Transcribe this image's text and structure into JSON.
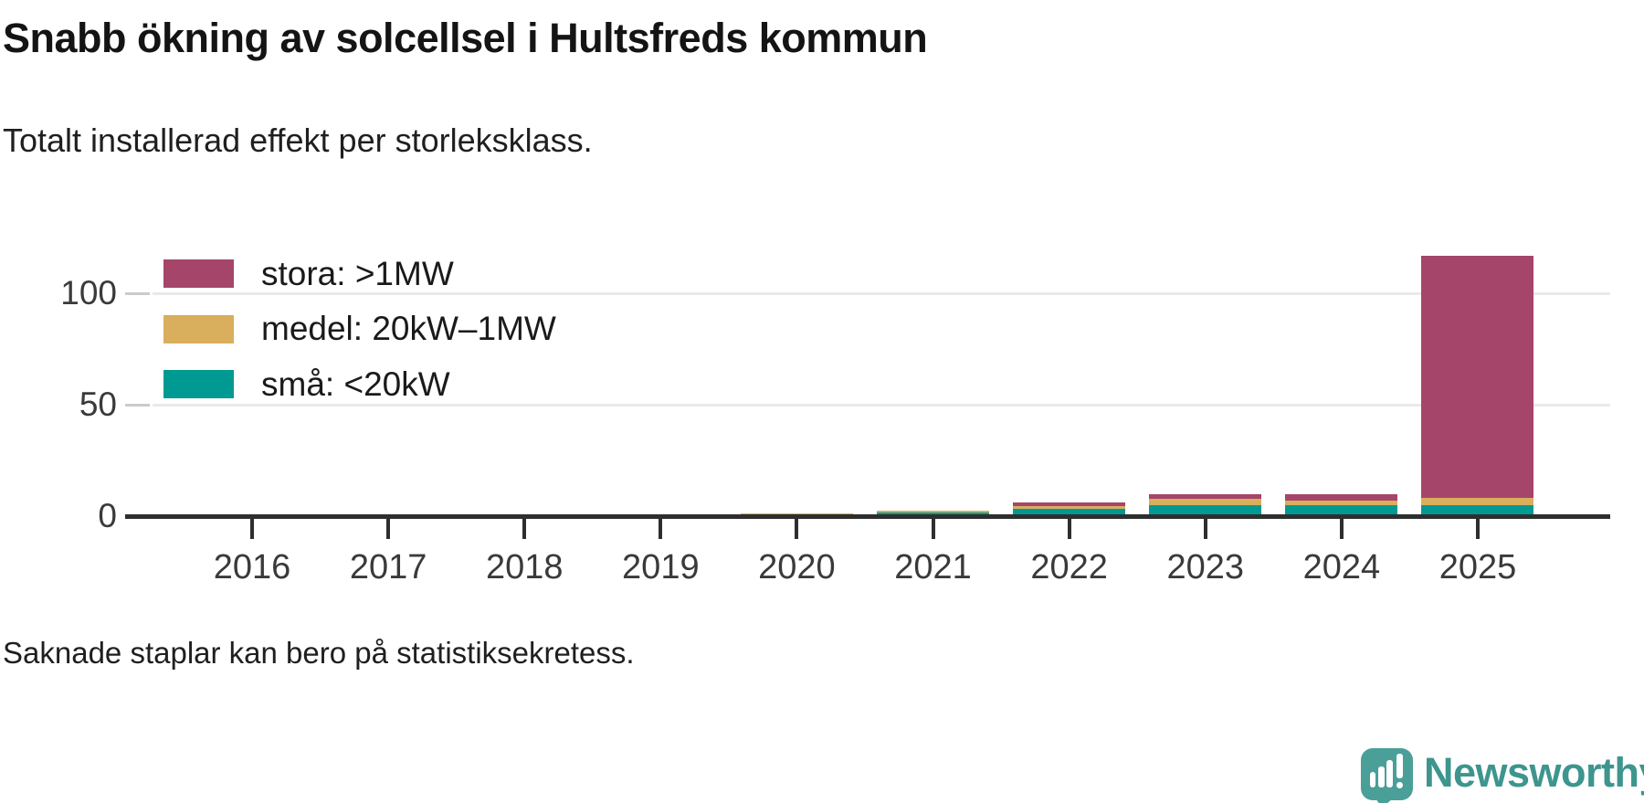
{
  "header": {
    "title": "Snabb ökning av solcellsel i Hultsfreds kommun",
    "subtitle": "Totalt installerad effekt per storleksklass."
  },
  "footer": {
    "note": "Saknade staplar kan bero på statistiksekretess.",
    "brand_name": "Newsworthy"
  },
  "colors": {
    "stora": "#a54569",
    "medel": "#d9ae5c",
    "sma": "#009a93",
    "axis": "#2e2e2e",
    "gridline": "#e9e9e9",
    "text": "#1a1a1a",
    "brand_teal": "#4a9f98",
    "brand_text": "#3d958e"
  },
  "chart_data": {
    "type": "bar",
    "stacked": true,
    "title": "Snabb ökning av solcellsel i Hultsfreds kommun",
    "subtitle": "Totalt installerad effekt per storleksklass.",
    "xlabel": "",
    "ylabel": "",
    "categories": [
      "2016",
      "2017",
      "2018",
      "2019",
      "2020",
      "2021",
      "2022",
      "2023",
      "2024",
      "2025"
    ],
    "series": [
      {
        "key": "stora",
        "name": "stora: >1MW",
        "color": "#a54569",
        "values": [
          0,
          0,
          0,
          0,
          0,
          0,
          1.6,
          2.0,
          2.9,
          108.6
        ]
      },
      {
        "key": "medel",
        "name": "medel: 20kW–1MW",
        "color": "#d9ae5c",
        "values": [
          0,
          0,
          0,
          0,
          0.4,
          0.8,
          1.2,
          2.9,
          2.0,
          3.3
        ]
      },
      {
        "key": "sma",
        "name": "små: <20kW",
        "color": "#009a93",
        "values": [
          0,
          0,
          0,
          0,
          0.8,
          1.6,
          3.3,
          4.9,
          4.9,
          4.9
        ]
      }
    ],
    "stack_bottom_to_top": [
      "sma",
      "medel",
      "stora"
    ],
    "ylim": [
      0,
      117
    ],
    "yticks": [
      {
        "label": "0",
        "value": 0
      },
      {
        "label": "50",
        "value": 50
      },
      {
        "label": "100",
        "value": 100
      }
    ],
    "legend_position": "top-left",
    "grid": "horizontal"
  }
}
